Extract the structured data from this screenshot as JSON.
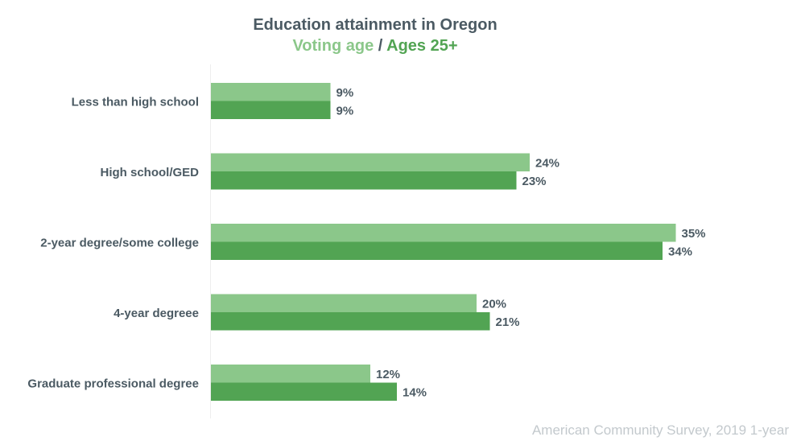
{
  "chart_data": {
    "type": "bar",
    "orientation": "horizontal",
    "title": "Education attainment in Oregon",
    "subtitle": {
      "first": "Voting age",
      "separator": " / ",
      "second": "Ages 25+"
    },
    "categories": [
      "Less than high school",
      "High school/GED",
      "2-year degree/some college",
      "4-year degreee",
      "Graduate professional degree"
    ],
    "series": [
      {
        "name": "Voting age",
        "values": [
          9,
          24,
          35,
          20,
          12
        ],
        "color": "#8bc78a"
      },
      {
        "name": "Ages 25+",
        "values": [
          9,
          23,
          34,
          21,
          14
        ],
        "color": "#52a453"
      }
    ],
    "value_suffix": "%",
    "xlim": [
      0,
      40
    ],
    "grid": false,
    "legend": "in subtitle"
  },
  "source": "American Community Survey, 2019 1-year",
  "colors": {
    "title": "#4b5a63",
    "label": "#4b5a63",
    "source": "#c3c9cd",
    "axis": "#eeeeee"
  }
}
